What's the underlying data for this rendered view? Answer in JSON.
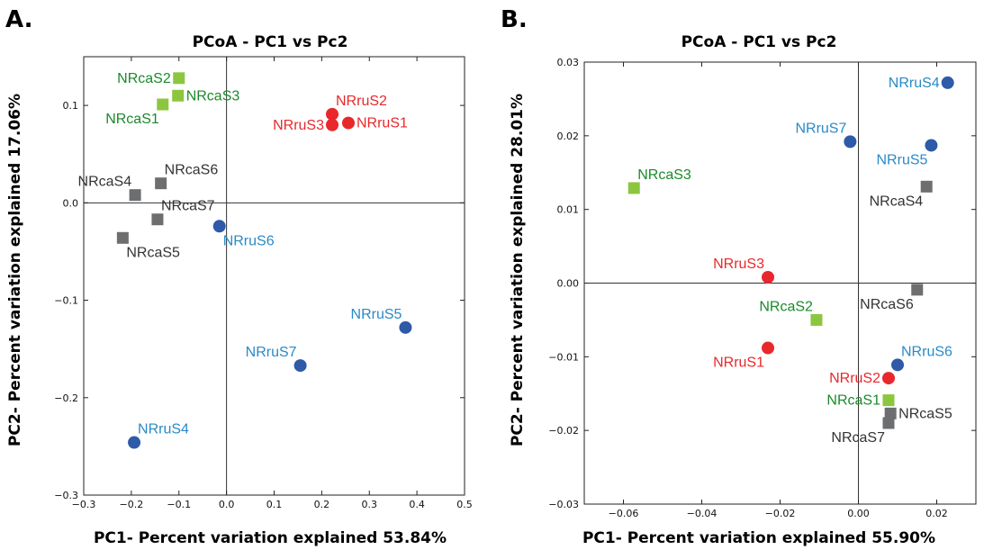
{
  "figure": {
    "panel_letters": [
      "A.",
      "B."
    ]
  },
  "chart_data": [
    {
      "type": "scatter",
      "title": "PCoA - PC1 vs Pc2",
      "xlabel": "PC1- Percent variation explained 53.84%",
      "ylabel": "PC2- Percent variation explained 17.06%",
      "xlim": [
        -0.3,
        0.5
      ],
      "ylim": [
        -0.3,
        0.15
      ],
      "xticks": [
        -0.3,
        -0.2,
        -0.1,
        0.0,
        0.1,
        0.2,
        0.3,
        0.4,
        0.5
      ],
      "xtick_labels": [
        "−0.3",
        "−0.2",
        "−0.1",
        "0.0",
        "0.1",
        "0.2",
        "0.3",
        "0.4",
        "0.5"
      ],
      "yticks": [
        -0.3,
        -0.2,
        -0.1,
        0.0,
        0.1
      ],
      "ytick_labels": [
        "−0.3",
        "−0.2",
        "−0.1",
        "0.0",
        "0.1"
      ],
      "grid": false,
      "zero_lines": true,
      "points": [
        {
          "label": "NRcaS2",
          "x": -0.1,
          "y": 0.128,
          "shape": "square",
          "color": "#8cc63f",
          "text_color": "#1a8a2a",
          "label_pos": "left"
        },
        {
          "label": "NRcaS3",
          "x": -0.102,
          "y": 0.11,
          "shape": "square",
          "color": "#8cc63f",
          "text_color": "#1a8a2a",
          "label_pos": "right"
        },
        {
          "label": "NRcaS1",
          "x": -0.134,
          "y": 0.101,
          "shape": "square",
          "color": "#8cc63f",
          "text_color": "#1a8a2a",
          "label_pos": "below-left"
        },
        {
          "label": "NRruS2",
          "x": 0.222,
          "y": 0.091,
          "shape": "circle",
          "color": "#e8282b",
          "text_color": "#e8282b",
          "label_pos": "above-right"
        },
        {
          "label": "NRruS3",
          "x": 0.222,
          "y": 0.08,
          "shape": "circle",
          "color": "#e8282b",
          "text_color": "#e8282b",
          "label_pos": "left"
        },
        {
          "label": "NRruS1",
          "x": 0.256,
          "y": 0.082,
          "shape": "circle",
          "color": "#e8282b",
          "text_color": "#e8282b",
          "label_pos": "right"
        },
        {
          "label": "NRcaS6",
          "x": -0.138,
          "y": 0.02,
          "shape": "square",
          "color": "#6d6e70",
          "text_color": "#333333",
          "label_pos": "above-right"
        },
        {
          "label": "NRcaS4",
          "x": -0.192,
          "y": 0.008,
          "shape": "square",
          "color": "#6d6e70",
          "text_color": "#333333",
          "label_pos": "above-left"
        },
        {
          "label": "NRcaS7",
          "x": -0.145,
          "y": -0.017,
          "shape": "square",
          "color": "#6d6e70",
          "text_color": "#333333",
          "label_pos": "above-right"
        },
        {
          "label": "NRcaS5",
          "x": -0.218,
          "y": -0.036,
          "shape": "square",
          "color": "#6d6e70",
          "text_color": "#333333",
          "label_pos": "below-right"
        },
        {
          "label": "NRruS6",
          "x": -0.015,
          "y": -0.024,
          "shape": "circle",
          "color": "#2e5aa7",
          "text_color": "#2a8ac6",
          "label_pos": "below-right"
        },
        {
          "label": "NRruS5",
          "x": 0.376,
          "y": -0.128,
          "shape": "circle",
          "color": "#2e5aa7",
          "text_color": "#2a8ac6",
          "label_pos": "above-left"
        },
        {
          "label": "NRruS7",
          "x": 0.155,
          "y": -0.167,
          "shape": "circle",
          "color": "#2e5aa7",
          "text_color": "#2a8ac6",
          "label_pos": "above-left"
        },
        {
          "label": "NRruS4",
          "x": -0.194,
          "y": -0.246,
          "shape": "circle",
          "color": "#2e5aa7",
          "text_color": "#2a8ac6",
          "label_pos": "above-right"
        }
      ]
    },
    {
      "type": "scatter",
      "title": "PCoA - PC1 vs Pc2",
      "xlabel": "PC1- Percent variation explained 55.90%",
      "ylabel": "PC2- Percent variation explained 28.01%",
      "xlim": [
        -0.07,
        0.03
      ],
      "ylim": [
        -0.03,
        0.03
      ],
      "xticks": [
        -0.06,
        -0.04,
        -0.02,
        0.0,
        0.02
      ],
      "xtick_labels": [
        "−0.06",
        "−0.04",
        "−0.02",
        "0.00",
        "0.02"
      ],
      "yticks": [
        -0.03,
        -0.02,
        -0.01,
        0.0,
        0.01,
        0.02,
        0.03
      ],
      "ytick_labels": [
        "−0.03",
        "−0.02",
        "−0.01",
        "0.00",
        "0.01",
        "0.02",
        "0.03"
      ],
      "grid": false,
      "zero_lines": true,
      "points": [
        {
          "label": "NRruS4",
          "x": 0.0228,
          "y": 0.0272,
          "shape": "circle",
          "color": "#2e5aa7",
          "text_color": "#2a8ac6",
          "label_pos": "left"
        },
        {
          "label": "NRruS7",
          "x": -0.0021,
          "y": 0.0192,
          "shape": "circle",
          "color": "#2e5aa7",
          "text_color": "#2a8ac6",
          "label_pos": "above-left"
        },
        {
          "label": "NRruS5",
          "x": 0.0186,
          "y": 0.0187,
          "shape": "circle",
          "color": "#2e5aa7",
          "text_color": "#2a8ac6",
          "label_pos": "below-left"
        },
        {
          "label": "NRcaS3",
          "x": -0.0573,
          "y": 0.0129,
          "shape": "square",
          "color": "#8cc63f",
          "text_color": "#1a8a2a",
          "label_pos": "above-right"
        },
        {
          "label": "NRcaS4",
          "x": 0.0174,
          "y": 0.0131,
          "shape": "square",
          "color": "#6d6e70",
          "text_color": "#333333",
          "label_pos": "below-left"
        },
        {
          "label": "NRruS3",
          "x": -0.0231,
          "y": 0.0008,
          "shape": "circle",
          "color": "#e8282b",
          "text_color": "#e8282b",
          "label_pos": "above-left"
        },
        {
          "label": "NRcaS6",
          "x": 0.015,
          "y": -0.0009,
          "shape": "square",
          "color": "#6d6e70",
          "text_color": "#333333",
          "label_pos": "below-left"
        },
        {
          "label": "NRcaS2",
          "x": -0.0107,
          "y": -0.005,
          "shape": "square",
          "color": "#8cc63f",
          "text_color": "#1a8a2a",
          "label_pos": "above-left"
        },
        {
          "label": "NRruS1",
          "x": -0.0231,
          "y": -0.0088,
          "shape": "circle",
          "color": "#e8282b",
          "text_color": "#e8282b",
          "label_pos": "below-left"
        },
        {
          "label": "NRruS6",
          "x": 0.01,
          "y": -0.0111,
          "shape": "circle",
          "color": "#2e5aa7",
          "text_color": "#2a8ac6",
          "label_pos": "above-right"
        },
        {
          "label": "NRruS2",
          "x": 0.0077,
          "y": -0.0129,
          "shape": "circle",
          "color": "#e8282b",
          "text_color": "#e8282b",
          "label_pos": "left"
        },
        {
          "label": "NRcaS1",
          "x": 0.0077,
          "y": -0.0159,
          "shape": "square",
          "color": "#8cc63f",
          "text_color": "#1a8a2a",
          "label_pos": "left"
        },
        {
          "label": "NRcaS5",
          "x": 0.0082,
          "y": -0.0177,
          "shape": "square",
          "color": "#6d6e70",
          "text_color": "#333333",
          "label_pos": "right"
        },
        {
          "label": "NRcaS7",
          "x": 0.0077,
          "y": -0.019,
          "shape": "square",
          "color": "#6d6e70",
          "text_color": "#333333",
          "label_pos": "below-left"
        }
      ]
    }
  ]
}
